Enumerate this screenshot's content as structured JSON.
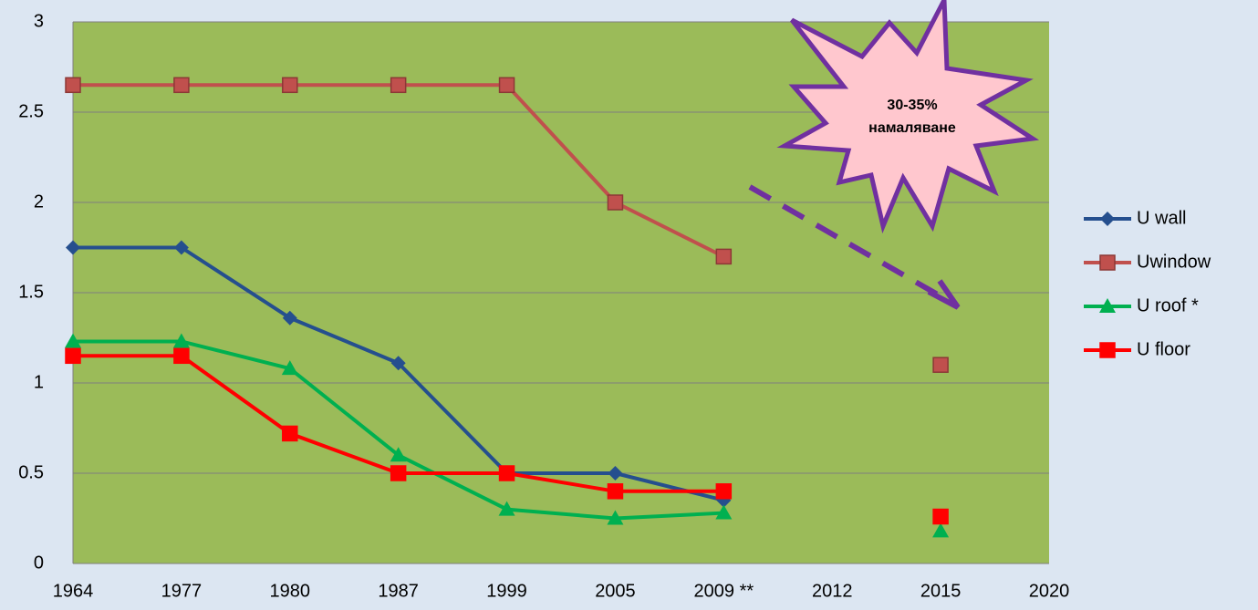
{
  "chart_data": {
    "type": "line",
    "categories": [
      "1964",
      "1977",
      "1980",
      "1987",
      "1999",
      "2005",
      "2009 **",
      "2012",
      "2015",
      "2020"
    ],
    "series": [
      {
        "name": "U wall",
        "color": "#254f8e",
        "marker": "diamond",
        "values": [
          1.75,
          1.75,
          1.36,
          1.11,
          0.5,
          0.5,
          0.35,
          null,
          null,
          null
        ]
      },
      {
        "name": "Uwindow",
        "color": "#c0504d",
        "marker": "square",
        "values": [
          2.65,
          2.65,
          2.65,
          2.65,
          2.65,
          2.0,
          1.7,
          null,
          1.1,
          null
        ]
      },
      {
        "name": "U roof *",
        "color": "#00b050",
        "marker": "triangle",
        "values": [
          1.23,
          1.23,
          1.08,
          0.6,
          0.3,
          0.25,
          0.28,
          null,
          0.18,
          null
        ]
      },
      {
        "name": "U floor",
        "color": "#ff0000",
        "marker": "square",
        "values": [
          1.15,
          1.15,
          0.72,
          0.5,
          0.5,
          0.4,
          0.4,
          null,
          0.26,
          null
        ]
      }
    ],
    "ylim": [
      0,
      3
    ],
    "yticks": [
      0,
      0.5,
      1,
      1.5,
      2,
      2.5,
      3
    ],
    "grid": true,
    "legend": "right",
    "annotation": [
      "30-35%",
      "намаляване"
    ]
  }
}
